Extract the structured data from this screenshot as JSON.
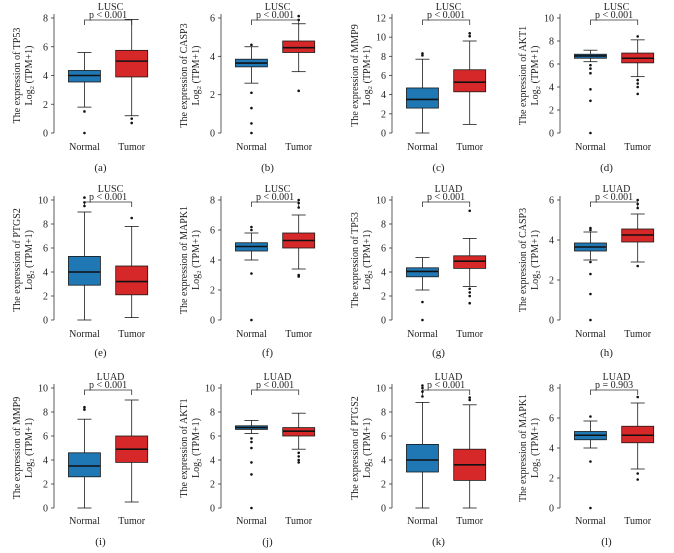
{
  "figure": {
    "background": "#ffffff"
  },
  "style": {
    "normal_color": "#1f77b4",
    "tumor_color": "#d62828",
    "box_stroke": "#1a1a1a",
    "axis_color": "#333333"
  },
  "chart_data": [
    {
      "id": "a",
      "type": "box",
      "panel_label": "(a)",
      "title": "LUSC",
      "pvalue": "p < 0.001",
      "ylabel_main": "The expression of TP53",
      "ylabel_unit": "Log₂ (TPM+1)",
      "ylim": [
        0,
        8
      ],
      "yticks": [
        "0",
        "2",
        "4",
        "6",
        "8"
      ],
      "categories": [
        "Normal",
        "Tumor"
      ],
      "series": [
        {
          "name": "Normal",
          "min": 1.8,
          "q1": 3.55,
          "median": 4.0,
          "q3": 4.35,
          "max": 5.6,
          "outliers": [
            1.5,
            0.0
          ]
        },
        {
          "name": "Tumor",
          "min": 1.2,
          "q1": 3.9,
          "median": 5.0,
          "q3": 5.75,
          "max": 7.9,
          "outliers": [
            1.0,
            0.7
          ]
        }
      ]
    },
    {
      "id": "b",
      "type": "box",
      "panel_label": "(b)",
      "title": "LUSC",
      "pvalue": "p < 0.001",
      "ylabel_main": "The expression of CASP3",
      "ylabel_unit": "Log₂ (TPM+1)",
      "ylim": [
        0,
        6
      ],
      "yticks": [
        "0",
        "2",
        "4",
        "6"
      ],
      "categories": [
        "Normal",
        "Tumor"
      ],
      "series": [
        {
          "name": "Normal",
          "min": 2.6,
          "q1": 3.45,
          "median": 3.65,
          "q3": 3.85,
          "max": 4.5,
          "outliers": [
            4.6,
            2.1,
            1.3,
            0.5,
            0.0
          ]
        },
        {
          "name": "Tumor",
          "min": 3.2,
          "q1": 4.2,
          "median": 4.45,
          "q3": 4.8,
          "max": 5.7,
          "outliers": [
            6.1,
            5.9,
            2.2
          ]
        }
      ]
    },
    {
      "id": "c",
      "type": "box",
      "panel_label": "(c)",
      "title": "LUSC",
      "pvalue": "p < 0.001",
      "ylabel_main": "The expression of MMP9",
      "ylabel_unit": "Log₂ (TPM+1)",
      "ylim": [
        0,
        12
      ],
      "yticks": [
        "0",
        "2",
        "4",
        "6",
        "8",
        "10",
        "12"
      ],
      "categories": [
        "Normal",
        "Tumor"
      ],
      "series": [
        {
          "name": "Normal",
          "min": 0.0,
          "q1": 2.6,
          "median": 3.5,
          "q3": 4.7,
          "max": 7.7,
          "outliers": [
            8.3,
            8.1
          ]
        },
        {
          "name": "Tumor",
          "min": 0.9,
          "q1": 4.3,
          "median": 5.3,
          "q3": 6.6,
          "max": 9.6,
          "outliers": [
            10.4,
            10.1
          ]
        }
      ]
    },
    {
      "id": "d",
      "type": "box",
      "panel_label": "(d)",
      "title": "LUSC",
      "pvalue": "p < 0.001",
      "ylabel_main": "The expression of AKT1",
      "ylabel_unit": "Log₂ (TPM+1)",
      "ylim": [
        0,
        10
      ],
      "yticks": [
        "0",
        "2",
        "4",
        "6",
        "8",
        "10"
      ],
      "categories": [
        "Normal",
        "Tumor"
      ],
      "series": [
        {
          "name": "Normal",
          "min": 6.2,
          "q1": 6.5,
          "median": 6.7,
          "q3": 6.85,
          "max": 7.2,
          "outliers": [
            5.9,
            5.6,
            5.2,
            3.8,
            2.8,
            0.0
          ]
        },
        {
          "name": "Tumor",
          "min": 4.9,
          "q1": 6.1,
          "median": 6.5,
          "q3": 6.95,
          "max": 8.1,
          "outliers": [
            4.6,
            4.3,
            4.0,
            3.4,
            8.4
          ]
        }
      ]
    },
    {
      "id": "e",
      "type": "box",
      "panel_label": "(e)",
      "title": "LUSC",
      "pvalue": "p < 0.001",
      "ylabel_main": "The expression of PTGS2",
      "ylabel_unit": "Log₂ (TPM+1)",
      "ylim": [
        0,
        10
      ],
      "yticks": [
        "0",
        "2",
        "4",
        "6",
        "8",
        "10"
      ],
      "categories": [
        "Normal",
        "Tumor"
      ],
      "series": [
        {
          "name": "Normal",
          "min": 0.0,
          "q1": 2.9,
          "median": 4.0,
          "q3": 5.3,
          "max": 9.0,
          "outliers": [
            10.2,
            9.8,
            9.5
          ]
        },
        {
          "name": "Tumor",
          "min": 0.2,
          "q1": 2.1,
          "median": 3.2,
          "q3": 4.5,
          "max": 7.8,
          "outliers": [
            8.5
          ]
        }
      ]
    },
    {
      "id": "f",
      "type": "box",
      "panel_label": "(f)",
      "title": "LUSC",
      "pvalue": "p < 0.001",
      "ylabel_main": "The expression of MAPK1",
      "ylabel_unit": "Log₂ (TPM+1)",
      "ylim": [
        0,
        8
      ],
      "yticks": [
        "0",
        "2",
        "4",
        "6",
        "8"
      ],
      "categories": [
        "Normal",
        "Tumor"
      ],
      "series": [
        {
          "name": "Normal",
          "min": 4.0,
          "q1": 4.6,
          "median": 4.9,
          "q3": 5.15,
          "max": 5.8,
          "outliers": [
            6.2,
            6.0,
            3.1,
            0.0
          ]
        },
        {
          "name": "Tumor",
          "min": 3.4,
          "q1": 4.8,
          "median": 5.3,
          "q3": 5.8,
          "max": 7.0,
          "outliers": [
            8.0,
            7.8,
            7.5,
            3.0,
            2.9
          ]
        }
      ]
    },
    {
      "id": "g",
      "type": "box",
      "panel_label": "(g)",
      "title": "LUAD",
      "pvalue": "p < 0.001",
      "ylabel_main": "The expression of TP53",
      "ylabel_unit": "Log₂ (TPM+1)",
      "ylim": [
        0,
        10
      ],
      "yticks": [
        "0",
        "2",
        "4",
        "6",
        "8",
        "10"
      ],
      "categories": [
        "Normal",
        "Tumor"
      ],
      "series": [
        {
          "name": "Normal",
          "min": 2.5,
          "q1": 3.6,
          "median": 4.05,
          "q3": 4.35,
          "max": 5.2,
          "outliers": [
            1.5,
            0.0
          ]
        },
        {
          "name": "Tumor",
          "min": 2.8,
          "q1": 4.3,
          "median": 4.9,
          "q3": 5.35,
          "max": 6.8,
          "outliers": [
            2.6,
            2.3,
            2.0,
            1.4,
            9.1
          ]
        }
      ]
    },
    {
      "id": "h",
      "type": "box",
      "panel_label": "(h)",
      "title": "LUAD",
      "pvalue": "p < 0.001",
      "ylabel_main": "The expression of CASP3",
      "ylabel_unit": "Log₂ (TPM+1)",
      "ylim": [
        0,
        6
      ],
      "yticks": [
        "0",
        "2",
        "4",
        "6"
      ],
      "categories": [
        "Normal",
        "Tumor"
      ],
      "series": [
        {
          "name": "Normal",
          "min": 3.0,
          "q1": 3.45,
          "median": 3.65,
          "q3": 3.85,
          "max": 4.4,
          "outliers": [
            4.6,
            4.5,
            2.9,
            2.3,
            1.3,
            0.0
          ]
        },
        {
          "name": "Tumor",
          "min": 2.9,
          "q1": 3.9,
          "median": 4.25,
          "q3": 4.55,
          "max": 5.3,
          "outliers": [
            6.0,
            5.8,
            5.6,
            2.7
          ]
        }
      ]
    },
    {
      "id": "i",
      "type": "box",
      "panel_label": "(i)",
      "title": "LUAD",
      "pvalue": "p < 0.001",
      "ylabel_main": "The expression of MMP9",
      "ylabel_unit": "Log₂ (TPM+1)",
      "ylim": [
        0,
        10
      ],
      "yticks": [
        "0",
        "2",
        "4",
        "6",
        "8",
        "10"
      ],
      "categories": [
        "Normal",
        "Tumor"
      ],
      "series": [
        {
          "name": "Normal",
          "min": 0.0,
          "q1": 2.6,
          "median": 3.5,
          "q3": 4.6,
          "max": 7.4,
          "outliers": [
            8.4,
            8.2
          ]
        },
        {
          "name": "Tumor",
          "min": 0.5,
          "q1": 3.8,
          "median": 4.9,
          "q3": 6.0,
          "max": 9.0,
          "outliers": []
        }
      ]
    },
    {
      "id": "j",
      "type": "box",
      "panel_label": "(j)",
      "title": "LUAD",
      "pvalue": "p < 0.001",
      "ylabel_main": "The expression of AKT1",
      "ylabel_unit": "Log₂ (TPM+1)",
      "ylim": [
        0,
        10
      ],
      "yticks": [
        "0",
        "2",
        "4",
        "6",
        "8",
        "10"
      ],
      "categories": [
        "Normal",
        "Tumor"
      ],
      "series": [
        {
          "name": "Normal",
          "min": 6.2,
          "q1": 6.55,
          "median": 6.7,
          "q3": 6.85,
          "max": 7.3,
          "outliers": [
            5.8,
            5.5,
            5.0,
            3.8,
            2.8,
            0.0
          ]
        },
        {
          "name": "Tumor",
          "min": 4.9,
          "q1": 6.0,
          "median": 6.4,
          "q3": 6.7,
          "max": 7.9,
          "outliers": [
            4.6,
            4.3,
            4.0,
            3.8
          ]
        }
      ]
    },
    {
      "id": "k",
      "type": "box",
      "panel_label": "(k)",
      "title": "LUAD",
      "pvalue": "p < 0.001",
      "ylabel_main": "The expression of PTGS2",
      "ylabel_unit": "Log₂ (TPM+1)",
      "ylim": [
        0,
        10
      ],
      "yticks": [
        "0",
        "2",
        "4",
        "6",
        "8",
        "10"
      ],
      "categories": [
        "Normal",
        "Tumor"
      ],
      "series": [
        {
          "name": "Normal",
          "min": 0.0,
          "q1": 3.0,
          "median": 4.0,
          "q3": 5.3,
          "max": 8.8,
          "outliers": [
            10.2,
            10.0,
            9.7,
            9.3
          ]
        },
        {
          "name": "Tumor",
          "min": 0.0,
          "q1": 2.3,
          "median": 3.6,
          "q3": 4.9,
          "max": 8.6,
          "outliers": [
            9.2,
            9.0
          ]
        }
      ]
    },
    {
      "id": "l",
      "type": "box",
      "panel_label": "(l)",
      "title": "LUAD",
      "pvalue": "p = 0.903",
      "ylabel_main": "The expression of MAPK1",
      "ylabel_unit": "Log₂ (TPM+1)",
      "ylim": [
        0,
        8
      ],
      "yticks": [
        "0",
        "2",
        "4",
        "6",
        "8"
      ],
      "categories": [
        "Normal",
        "Tumor"
      ],
      "series": [
        {
          "name": "Normal",
          "min": 4.0,
          "q1": 4.55,
          "median": 4.85,
          "q3": 5.1,
          "max": 5.8,
          "outliers": [
            6.1,
            3.1,
            0.0
          ]
        },
        {
          "name": "Tumor",
          "min": 2.6,
          "q1": 4.35,
          "median": 4.85,
          "q3": 5.45,
          "max": 7.0,
          "outliers": [
            7.4,
            2.3,
            1.9
          ]
        }
      ]
    }
  ]
}
